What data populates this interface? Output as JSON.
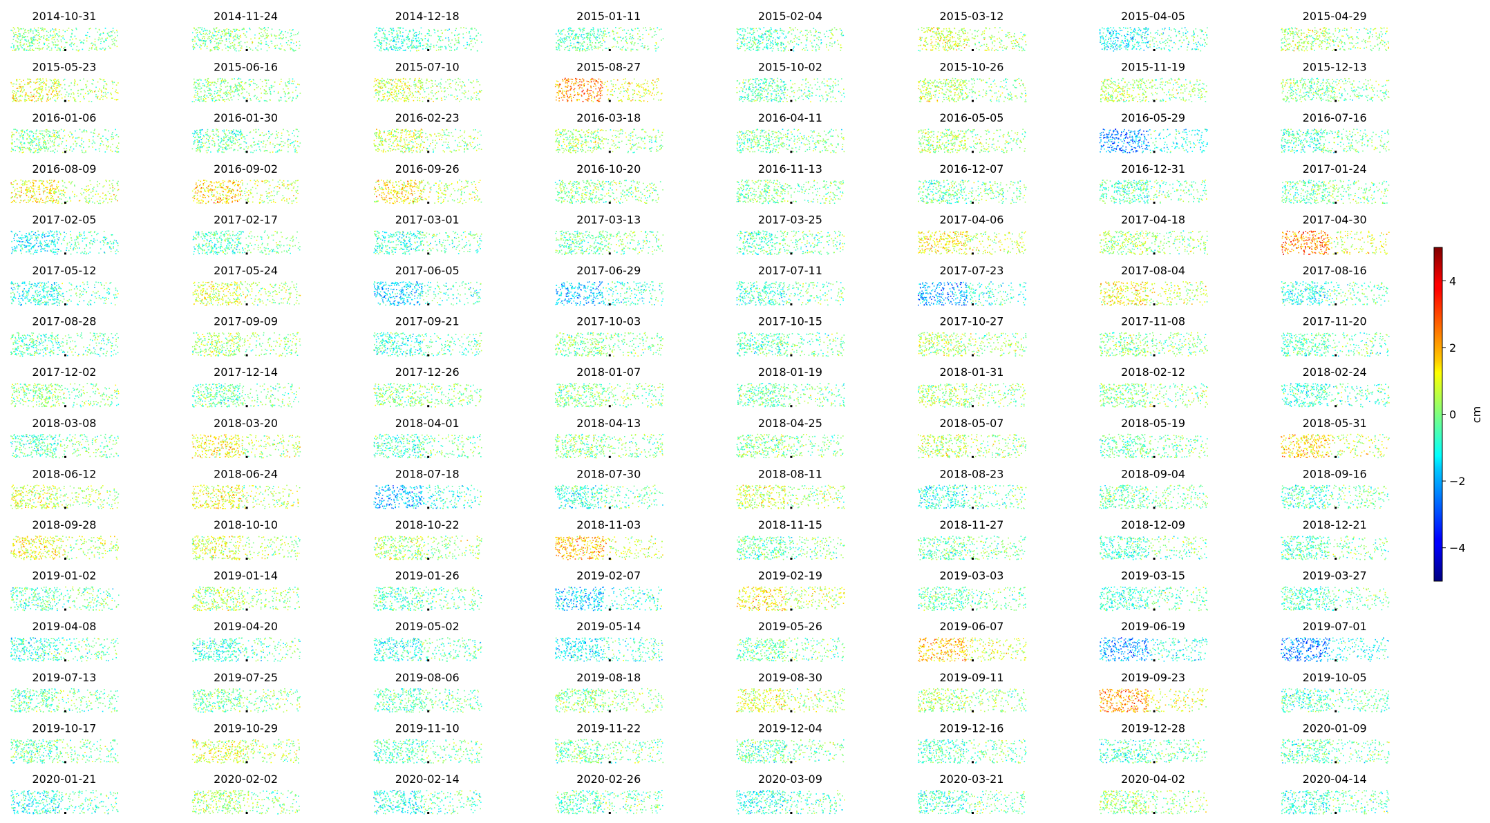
{
  "chart_data": {
    "type": "scatter",
    "subplot_titles": [
      "2014-10-31",
      "2014-11-24",
      "2014-12-18",
      "2015-01-11",
      "2015-02-04",
      "2015-03-12",
      "2015-04-05",
      "2015-04-29",
      "2015-05-23",
      "2015-06-16",
      "2015-07-10",
      "2015-08-27",
      "2015-10-02",
      "2015-10-26",
      "2015-11-19",
      "2015-12-13",
      "2016-01-06",
      "2016-01-30",
      "2016-02-23",
      "2016-03-18",
      "2016-04-11",
      "2016-05-05",
      "2016-05-29",
      "2016-07-16",
      "2016-08-09",
      "2016-09-02",
      "2016-09-26",
      "2016-10-20",
      "2016-11-13",
      "2016-12-07",
      "2016-12-31",
      "2017-01-24",
      "2017-02-05",
      "2017-02-17",
      "2017-03-01",
      "2017-03-13",
      "2017-03-25",
      "2017-04-06",
      "2017-04-18",
      "2017-04-30",
      "2017-05-12",
      "2017-05-24",
      "2017-06-05",
      "2017-06-29",
      "2017-07-11",
      "2017-07-23",
      "2017-08-04",
      "2017-08-16",
      "2017-08-28",
      "2017-09-09",
      "2017-09-21",
      "2017-10-03",
      "2017-10-15",
      "2017-10-27",
      "2017-11-08",
      "2017-11-20",
      "2017-12-02",
      "2017-12-14",
      "2017-12-26",
      "2018-01-07",
      "2018-01-19",
      "2018-01-31",
      "2018-02-12",
      "2018-02-24",
      "2018-03-08",
      "2018-03-20",
      "2018-04-01",
      "2018-04-13",
      "2018-04-25",
      "2018-05-07",
      "2018-05-19",
      "2018-05-31",
      "2018-06-12",
      "2018-06-24",
      "2018-07-18",
      "2018-07-30",
      "2018-08-11",
      "2018-08-23",
      "2018-09-04",
      "2018-09-16",
      "2018-09-28",
      "2018-10-10",
      "2018-10-22",
      "2018-11-03",
      "2018-11-15",
      "2018-11-27",
      "2018-12-09",
      "2018-12-21",
      "2019-01-02",
      "2019-01-14",
      "2019-01-26",
      "2019-02-07",
      "2019-02-19",
      "2019-03-03",
      "2019-03-15",
      "2019-03-27",
      "2019-04-08",
      "2019-04-20",
      "2019-05-02",
      "2019-05-14",
      "2019-05-26",
      "2019-06-07",
      "2019-06-19",
      "2019-07-01",
      "2019-07-13",
      "2019-07-25",
      "2019-08-06",
      "2019-08-18",
      "2019-08-30",
      "2019-09-11",
      "2019-09-23",
      "2019-10-05",
      "2019-10-17",
      "2019-10-29",
      "2019-11-10",
      "2019-11-22",
      "2019-12-04",
      "2019-12-16",
      "2019-12-28",
      "2020-01-09",
      "2020-01-21",
      "2020-02-02",
      "2020-02-14",
      "2020-02-26",
      "2020-03-09",
      "2020-03-21",
      "2020-04-02",
      "2020-04-14"
    ],
    "subplot_tone": [
      0,
      0,
      -0.5,
      -0.3,
      -0.3,
      0.5,
      -0.8,
      0.3,
      0.6,
      0,
      0.5,
      1.5,
      -0.3,
      0.3,
      0.3,
      0,
      0,
      -0.2,
      0.4,
      0.2,
      -0.1,
      0.2,
      -1.5,
      -0.3,
      0.8,
      1.0,
      0.8,
      0,
      0,
      -0.2,
      -0.3,
      -0.2,
      -0.8,
      -0.3,
      -0.5,
      -0.2,
      -0.3,
      0.8,
      0.2,
      1.5,
      -0.6,
      0.5,
      -1.0,
      -1.2,
      -0.5,
      -1.3,
      0.8,
      -0.6,
      -0.3,
      0.2,
      -0.5,
      0,
      -0.3,
      0.3,
      0,
      -0.3,
      0.1,
      -0.2,
      0,
      0,
      -0.2,
      0.2,
      0,
      -0.5,
      -0.3,
      0.8,
      -0.4,
      0,
      0,
      0.4,
      -0.2,
      1.0,
      0.5,
      0.7,
      -1.2,
      -0.5,
      0.5,
      -0.6,
      -0.2,
      -0.4,
      0.8,
      0.5,
      0.3,
      1.2,
      -0.2,
      -0.2,
      -0.4,
      -0.3,
      -0.3,
      0.2,
      -0.3,
      -1.0,
      0.8,
      -0.2,
      -0.5,
      -0.4,
      -0.5,
      -0.5,
      -0.6,
      -0.8,
      -0.2,
      1.2,
      -1.4,
      -1.5,
      -0.2,
      -0.1,
      -0.3,
      0.1,
      0.6,
      0.2,
      1.4,
      -0.4,
      -0.2,
      0.6,
      -0.3,
      -0.1,
      -0.2,
      -0.3,
      -0.4,
      -0.3,
      -0.6,
      0.2,
      -0.7,
      -0.3,
      -0.6,
      -0.4,
      0.1,
      -0.5
    ],
    "colorbar": {
      "colormap": "jet",
      "label": "cm",
      "range": [
        -5,
        5
      ],
      "ticks": [
        -4,
        -2,
        0,
        2,
        4
      ],
      "tick_labels": [
        "−4",
        "−2",
        "0",
        "2",
        "4"
      ]
    },
    "xlabel": "",
    "ylabel": "",
    "grid": false,
    "axes_visible": false,
    "layout": {
      "rows": 16,
      "cols": 8
    }
  }
}
